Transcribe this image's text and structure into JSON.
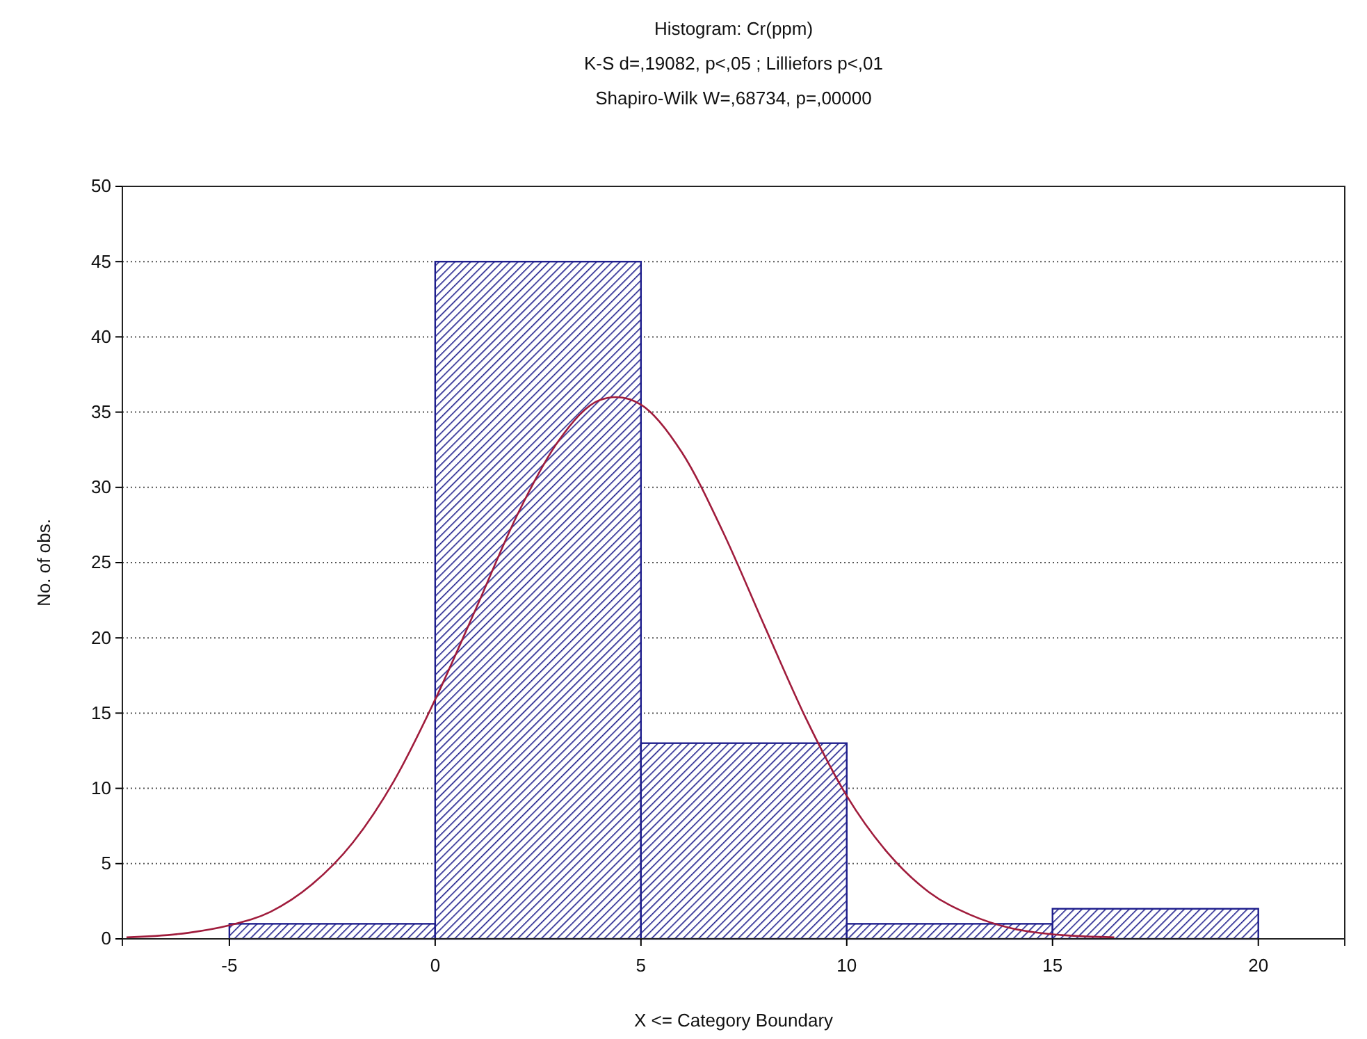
{
  "chart_data": {
    "type": "histogram",
    "title": "Histogram: Cr(ppm)",
    "subtitle": "K-S d=,19082, p<,05 ; Lilliefors p<,01\nShapiro-Wilk W=,68734, p=,00000",
    "xlabel": "X <= Category Boundary",
    "ylabel": "No. of obs.",
    "series": [
      {
        "type": "histogram",
        "bins": [
          -5,
          0,
          5,
          10,
          15,
          20
        ],
        "values": [
          1,
          45,
          13,
          1,
          2
        ],
        "color": "#1e1e8c"
      },
      {
        "type": "line",
        "x": [
          -7.5,
          -6,
          -5,
          -4,
          -3,
          -2,
          -1,
          0,
          1,
          2,
          3,
          4,
          4.4,
          5,
          6,
          7,
          8,
          9,
          10,
          11,
          12,
          13,
          14,
          15,
          16.5
        ],
        "values": [
          0.1,
          0.4,
          0.9,
          1.8,
          3.6,
          6.4,
          10.5,
          15.9,
          22,
          28.2,
          33.1,
          35.8,
          36,
          35.5,
          32.3,
          27,
          20.8,
          14.7,
          9.5,
          5.7,
          3.1,
          1.6,
          0.7,
          0.3,
          0.1
        ],
        "color": "#a01c3c"
      }
    ],
    "xlim": [
      -7.6,
      22.1
    ],
    "xticks": [
      -5,
      0,
      5,
      10,
      15,
      20
    ],
    "ylim": [
      0,
      50
    ],
    "yticks": [
      0,
      5,
      10,
      15,
      20,
      25,
      30,
      35,
      40,
      45,
      50
    ],
    "grid": "y"
  }
}
